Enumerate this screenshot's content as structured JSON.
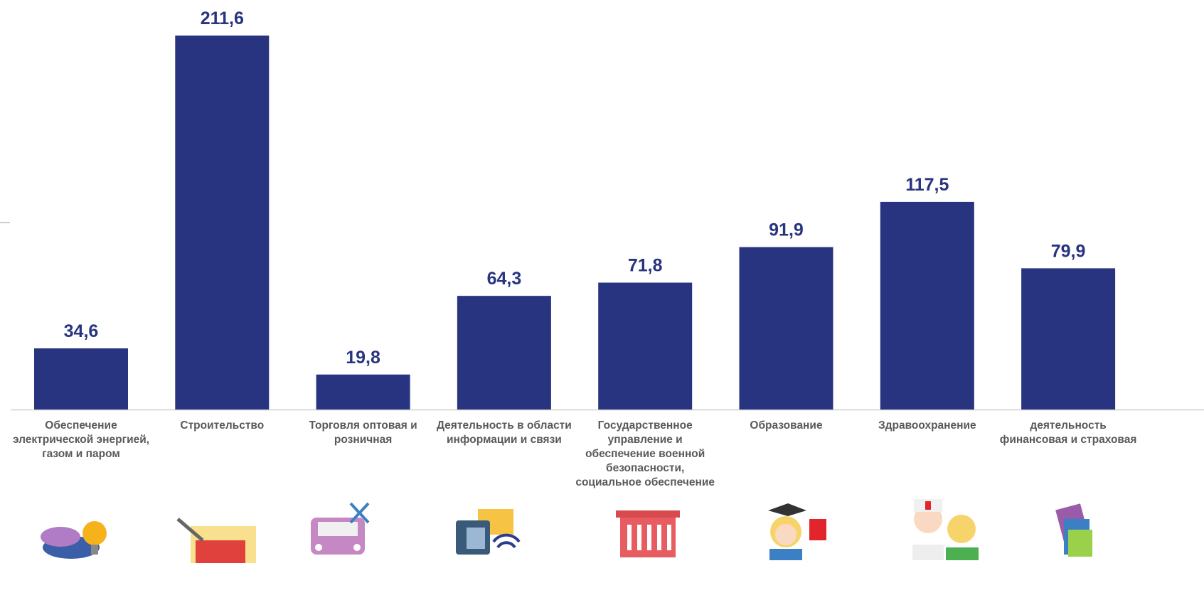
{
  "chart_data": {
    "type": "bar",
    "categories": [
      "Обеспечение электрической энергией, газом и паром",
      "Строительство",
      "Торговля оптовая и розничная",
      "Деятельность в области информации и связи",
      "Государственное управление и обеспечение военной безопасности, социальное обеспечение",
      "Образование",
      "Здравоохранение",
      "деятельность финансовая и страховая"
    ],
    "values": [
      34.6,
      211.6,
      19.8,
      64.3,
      71.8,
      91.9,
      117.5,
      79.9
    ],
    "value_labels": [
      "34,6",
      "211,6",
      "19,8",
      "64,3",
      "71,8",
      "91,9",
      "117,5",
      "79,9"
    ],
    "color": "#283480"
  }
}
